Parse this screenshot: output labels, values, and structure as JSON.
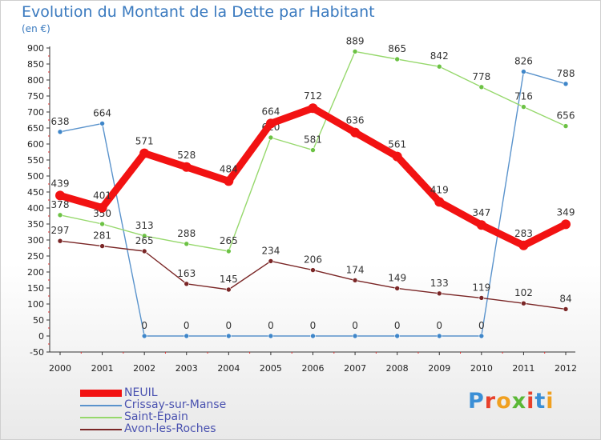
{
  "header": {
    "title": "Evolution du Montant de la Dette par Habitant",
    "unit": "(en €)"
  },
  "logo": {
    "text": "Proxiti",
    "letter_colors": [
      "#3b8fd6",
      "#e8412c",
      "#f0a020",
      "#5bb836",
      "#e8412c",
      "#3b8fd6",
      "#f0a020"
    ]
  },
  "chart_data": {
    "type": "line",
    "title": "Evolution du Montant de la Dette par Habitant",
    "subtitle": "(en €)",
    "xlabel": "",
    "ylabel": "",
    "x": [
      "2000",
      "2001",
      "2002",
      "2003",
      "2004",
      "2005",
      "2006",
      "2007",
      "2008",
      "2009",
      "2010",
      "2011",
      "2012"
    ],
    "ylim": [
      -50,
      900
    ],
    "yticks": [
      -50,
      0,
      50,
      100,
      150,
      200,
      250,
      300,
      350,
      400,
      450,
      500,
      550,
      600,
      650,
      700,
      750,
      800,
      850,
      900
    ],
    "grid": false,
    "legend_position": "bottom-left",
    "series": [
      {
        "name": "Crissay-sur-Manse",
        "color": "#5a93cc",
        "marker": "#3f86c9",
        "values": [
          638,
          664,
          0,
          0,
          0,
          0,
          0,
          0,
          0,
          0,
          0,
          826,
          788
        ]
      },
      {
        "name": "Saint-Epain",
        "color": "#96d86c",
        "marker": "#6cc244",
        "values": [
          378,
          350,
          313,
          288,
          265,
          620,
          581,
          889,
          865,
          842,
          778,
          716,
          656
        ]
      },
      {
        "name": "Avon-les-Roches",
        "color": "#7a2626",
        "marker": "#7a2626",
        "values": [
          297,
          281,
          265,
          163,
          145,
          234,
          206,
          174,
          149,
          133,
          119,
          102,
          84
        ]
      },
      {
        "name": "NEUIL",
        "color": "#f21212",
        "marker": "#f21212",
        "values": [
          439,
          401,
          571,
          528,
          484,
          664,
          712,
          636,
          561,
          419,
          347,
          283,
          349
        ]
      }
    ],
    "legend_order": [
      "NEUIL",
      "Crissay-sur-Manse",
      "Saint-Epain",
      "Avon-les-Roches"
    ]
  }
}
